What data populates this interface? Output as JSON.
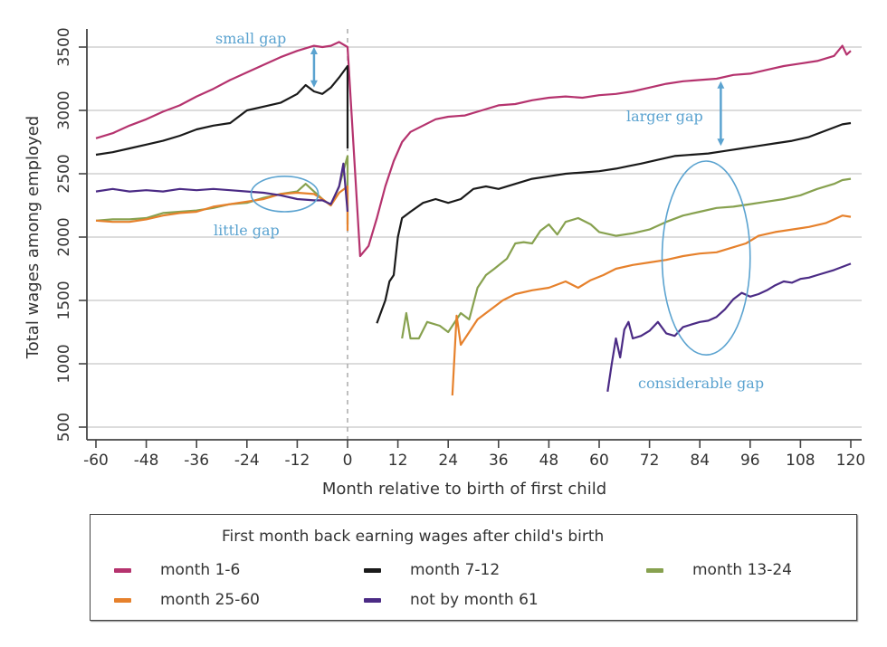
{
  "chart_data": {
    "type": "line",
    "title": "",
    "xlabel": "Month relative to birth of first child",
    "ylabel": "Total wages among employed",
    "xlim": [
      -62,
      122
    ],
    "ylim": [
      420,
      3620
    ],
    "xticks": [
      -60,
      -48,
      -36,
      -24,
      -12,
      0,
      12,
      24,
      36,
      48,
      60,
      72,
      84,
      96,
      108,
      120
    ],
    "xtick_labels": [
      "-60",
      "-48",
      "-36",
      "-24",
      "-12",
      "0",
      "12",
      "24",
      "36",
      "48",
      "60",
      "72",
      "84",
      "96",
      "108",
      "120"
    ],
    "yticks": [
      500,
      1000,
      1500,
      2000,
      2500,
      3000,
      3500
    ],
    "ytick_labels": [
      "500",
      "1000",
      "1500",
      "2000",
      "2500",
      "3000",
      "3500"
    ],
    "grid": "horizontal",
    "reference_line_x": 0,
    "legend": {
      "title": "First month back earning wages after child's birth",
      "placement": "bottom"
    },
    "series": [
      {
        "name": "month 1-6",
        "color": "#b5336e",
        "points": [
          [
            -60,
            2780
          ],
          [
            -56,
            2820
          ],
          [
            -52,
            2880
          ],
          [
            -48,
            2930
          ],
          [
            -44,
            2990
          ],
          [
            -40,
            3040
          ],
          [
            -36,
            3110
          ],
          [
            -32,
            3170
          ],
          [
            -28,
            3240
          ],
          [
            -24,
            3300
          ],
          [
            -20,
            3360
          ],
          [
            -16,
            3420
          ],
          [
            -12,
            3470
          ],
          [
            -8,
            3510
          ],
          [
            -6,
            3500
          ],
          [
            -4,
            3510
          ],
          [
            -2,
            3540
          ],
          [
            0,
            3500
          ],
          [
            3,
            1850
          ],
          [
            5,
            1930
          ],
          [
            7,
            2150
          ],
          [
            9,
            2400
          ],
          [
            11,
            2600
          ],
          [
            13,
            2750
          ],
          [
            15,
            2830
          ],
          [
            18,
            2880
          ],
          [
            21,
            2930
          ],
          [
            24,
            2950
          ],
          [
            28,
            2960
          ],
          [
            32,
            3000
          ],
          [
            36,
            3040
          ],
          [
            40,
            3050
          ],
          [
            44,
            3080
          ],
          [
            48,
            3100
          ],
          [
            52,
            3110
          ],
          [
            56,
            3100
          ],
          [
            60,
            3120
          ],
          [
            64,
            3130
          ],
          [
            68,
            3150
          ],
          [
            72,
            3180
          ],
          [
            76,
            3210
          ],
          [
            80,
            3230
          ],
          [
            84,
            3240
          ],
          [
            88,
            3250
          ],
          [
            92,
            3280
          ],
          [
            96,
            3290
          ],
          [
            100,
            3320
          ],
          [
            104,
            3350
          ],
          [
            108,
            3370
          ],
          [
            112,
            3390
          ],
          [
            116,
            3430
          ],
          [
            118,
            3510
          ],
          [
            119,
            3440
          ],
          [
            120,
            3470
          ]
        ]
      },
      {
        "name": "month 7-12",
        "color": "#1a1a1a",
        "points": [
          [
            -60,
            2650
          ],
          [
            -56,
            2670
          ],
          [
            -52,
            2700
          ],
          [
            -48,
            2730
          ],
          [
            -44,
            2760
          ],
          [
            -40,
            2800
          ],
          [
            -36,
            2850
          ],
          [
            -32,
            2880
          ],
          [
            -28,
            2900
          ],
          [
            -24,
            3000
          ],
          [
            -20,
            3030
          ],
          [
            -16,
            3060
          ],
          [
            -12,
            3130
          ],
          [
            -10,
            3200
          ],
          [
            -8,
            3150
          ],
          [
            -6,
            3130
          ],
          [
            -4,
            3180
          ],
          [
            -2,
            3260
          ],
          [
            0,
            3350
          ],
          [
            0,
            2700
          ],
          [
            7,
            1320
          ],
          [
            9,
            1500
          ],
          [
            10,
            1650
          ],
          [
            11,
            1700
          ],
          [
            12,
            2000
          ],
          [
            13,
            2150
          ],
          [
            15,
            2200
          ],
          [
            18,
            2270
          ],
          [
            21,
            2300
          ],
          [
            24,
            2270
          ],
          [
            27,
            2300
          ],
          [
            30,
            2380
          ],
          [
            33,
            2400
          ],
          [
            36,
            2380
          ],
          [
            40,
            2420
          ],
          [
            44,
            2460
          ],
          [
            48,
            2480
          ],
          [
            52,
            2500
          ],
          [
            56,
            2510
          ],
          [
            60,
            2520
          ],
          [
            64,
            2540
          ],
          [
            67,
            2560
          ],
          [
            70,
            2580
          ],
          [
            74,
            2610
          ],
          [
            78,
            2640
          ],
          [
            82,
            2650
          ],
          [
            86,
            2660
          ],
          [
            90,
            2680
          ],
          [
            94,
            2700
          ],
          [
            98,
            2720
          ],
          [
            102,
            2740
          ],
          [
            106,
            2760
          ],
          [
            110,
            2790
          ],
          [
            114,
            2840
          ],
          [
            118,
            2890
          ],
          [
            120,
            2900
          ]
        ]
      },
      {
        "name": "month 13-24",
        "color": "#87a14f",
        "points": [
          [
            -60,
            2130
          ],
          [
            -56,
            2140
          ],
          [
            -52,
            2140
          ],
          [
            -48,
            2150
          ],
          [
            -44,
            2190
          ],
          [
            -40,
            2200
          ],
          [
            -36,
            2210
          ],
          [
            -32,
            2230
          ],
          [
            -28,
            2260
          ],
          [
            -24,
            2270
          ],
          [
            -20,
            2310
          ],
          [
            -16,
            2340
          ],
          [
            -12,
            2360
          ],
          [
            -10,
            2420
          ],
          [
            -8,
            2360
          ],
          [
            -6,
            2300
          ],
          [
            -4,
            2250
          ],
          [
            -2,
            2400
          ],
          [
            0,
            2640
          ],
          [
            0,
            2100
          ],
          [
            13,
            1200
          ],
          [
            14,
            1400
          ],
          [
            15,
            1200
          ],
          [
            17,
            1200
          ],
          [
            19,
            1330
          ],
          [
            22,
            1300
          ],
          [
            24,
            1250
          ],
          [
            27,
            1400
          ],
          [
            29,
            1350
          ],
          [
            31,
            1600
          ],
          [
            33,
            1700
          ],
          [
            35,
            1750
          ],
          [
            38,
            1830
          ],
          [
            40,
            1950
          ],
          [
            42,
            1960
          ],
          [
            44,
            1950
          ],
          [
            46,
            2050
          ],
          [
            48,
            2100
          ],
          [
            50,
            2020
          ],
          [
            52,
            2120
          ],
          [
            55,
            2150
          ],
          [
            58,
            2100
          ],
          [
            60,
            2040
          ],
          [
            64,
            2010
          ],
          [
            68,
            2030
          ],
          [
            72,
            2060
          ],
          [
            76,
            2120
          ],
          [
            80,
            2170
          ],
          [
            84,
            2200
          ],
          [
            88,
            2230
          ],
          [
            92,
            2240
          ],
          [
            96,
            2260
          ],
          [
            100,
            2280
          ],
          [
            104,
            2300
          ],
          [
            108,
            2330
          ],
          [
            112,
            2380
          ],
          [
            116,
            2420
          ],
          [
            118,
            2450
          ],
          [
            120,
            2460
          ]
        ]
      },
      {
        "name": "month 25-60",
        "color": "#e6812c",
        "points": [
          [
            -60,
            2130
          ],
          [
            -56,
            2120
          ],
          [
            -52,
            2120
          ],
          [
            -48,
            2140
          ],
          [
            -44,
            2170
          ],
          [
            -40,
            2190
          ],
          [
            -36,
            2200
          ],
          [
            -32,
            2240
          ],
          [
            -28,
            2260
          ],
          [
            -24,
            2280
          ],
          [
            -20,
            2300
          ],
          [
            -16,
            2340
          ],
          [
            -12,
            2350
          ],
          [
            -8,
            2340
          ],
          [
            -6,
            2300
          ],
          [
            -4,
            2250
          ],
          [
            -2,
            2350
          ],
          [
            0,
            2400
          ],
          [
            0,
            2050
          ],
          [
            25,
            750
          ],
          [
            26,
            1380
          ],
          [
            27,
            1150
          ],
          [
            29,
            1250
          ],
          [
            31,
            1350
          ],
          [
            33,
            1400
          ],
          [
            35,
            1450
          ],
          [
            37,
            1500
          ],
          [
            40,
            1550
          ],
          [
            44,
            1580
          ],
          [
            48,
            1600
          ],
          [
            52,
            1650
          ],
          [
            55,
            1600
          ],
          [
            58,
            1660
          ],
          [
            61,
            1700
          ],
          [
            64,
            1750
          ],
          [
            68,
            1780
          ],
          [
            72,
            1800
          ],
          [
            76,
            1820
          ],
          [
            80,
            1850
          ],
          [
            84,
            1870
          ],
          [
            88,
            1880
          ],
          [
            92,
            1920
          ],
          [
            95,
            1950
          ],
          [
            98,
            2010
          ],
          [
            102,
            2040
          ],
          [
            106,
            2060
          ],
          [
            110,
            2080
          ],
          [
            114,
            2110
          ],
          [
            118,
            2170
          ],
          [
            120,
            2160
          ]
        ]
      },
      {
        "name": "not by month 61",
        "color": "#4b2b85",
        "points": [
          [
            -60,
            2360
          ],
          [
            -56,
            2380
          ],
          [
            -52,
            2360
          ],
          [
            -48,
            2370
          ],
          [
            -44,
            2360
          ],
          [
            -40,
            2380
          ],
          [
            -36,
            2370
          ],
          [
            -32,
            2380
          ],
          [
            -28,
            2370
          ],
          [
            -24,
            2360
          ],
          [
            -20,
            2350
          ],
          [
            -16,
            2330
          ],
          [
            -12,
            2300
          ],
          [
            -8,
            2290
          ],
          [
            -6,
            2290
          ],
          [
            -4,
            2260
          ],
          [
            -2,
            2400
          ],
          [
            -1,
            2580
          ],
          [
            0,
            2200
          ],
          [
            62,
            780
          ],
          [
            63,
            1000
          ],
          [
            64,
            1200
          ],
          [
            65,
            1050
          ],
          [
            66,
            1270
          ],
          [
            67,
            1330
          ],
          [
            68,
            1200
          ],
          [
            70,
            1220
          ],
          [
            72,
            1260
          ],
          [
            74,
            1330
          ],
          [
            76,
            1240
          ],
          [
            78,
            1220
          ],
          [
            80,
            1290
          ],
          [
            82,
            1310
          ],
          [
            84,
            1330
          ],
          [
            86,
            1340
          ],
          [
            88,
            1370
          ],
          [
            90,
            1430
          ],
          [
            92,
            1510
          ],
          [
            94,
            1560
          ],
          [
            96,
            1530
          ],
          [
            98,
            1550
          ],
          [
            100,
            1580
          ],
          [
            102,
            1620
          ],
          [
            104,
            1650
          ],
          [
            106,
            1640
          ],
          [
            108,
            1670
          ],
          [
            110,
            1680
          ],
          [
            112,
            1700
          ],
          [
            116,
            1740
          ],
          [
            120,
            1790
          ]
        ]
      }
    ],
    "annotations": [
      {
        "text": "small gap",
        "near_x": -8,
        "near_y": 3560
      },
      {
        "text": "little gap",
        "near_x": -18,
        "near_y": 2050
      },
      {
        "text": "larger gap",
        "near_x": 82,
        "near_y": 2970
      },
      {
        "text": "considerable gap",
        "near_x": 90,
        "near_y": 1090
      }
    ],
    "annotation_marks": [
      {
        "kind": "double-arrow",
        "x": -8,
        "y_from": 3500,
        "y_to": 3180
      },
      {
        "kind": "double-arrow",
        "x": 89,
        "y_from": 3230,
        "y_to": 2720
      },
      {
        "kind": "ellipse",
        "x_from": -23,
        "x_to": -7,
        "y_from": 2200,
        "y_to": 2480
      },
      {
        "kind": "ellipse",
        "x_from": 75,
        "x_to": 96,
        "y_from": 1070,
        "y_to": 2600
      }
    ],
    "annotation_color": "#5ba3d0"
  },
  "legend": {
    "title": "First month back earning wages after child's birth",
    "items": [
      {
        "label": "month 1-6",
        "color": "#b5336e"
      },
      {
        "label": "month 7-12",
        "color": "#1a1a1a"
      },
      {
        "label": "month 13-24",
        "color": "#87a14f"
      },
      {
        "label": "month 25-60",
        "color": "#e6812c"
      },
      {
        "label": "not by month 61",
        "color": "#4b2b85"
      }
    ]
  }
}
